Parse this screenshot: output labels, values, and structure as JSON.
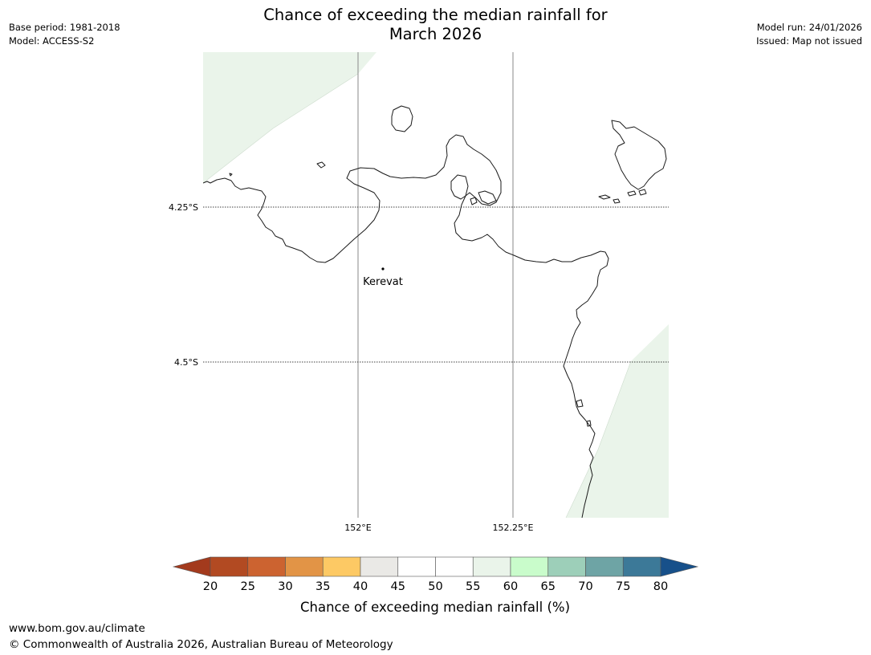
{
  "header": {
    "base_period": "Base period: 1981-2018",
    "model": "Model: ACCESS-S2",
    "model_run": "Model run: 24/01/2026",
    "issued": "Issued: Map not issued",
    "title_line1": "Chance of exceeding the median rainfall for",
    "title_line2": "March 2026"
  },
  "map": {
    "lat_labels": [
      "4.25°S",
      "4.5°S"
    ],
    "lon_labels": [
      "152°E",
      "152.25°E"
    ],
    "place_label": "Kerevat",
    "shading_class": "55-60",
    "shading_color": "#eaf4ea"
  },
  "colorbar": {
    "label": "Chance of exceeding median rainfall (%)",
    "ticks": [
      "20",
      "25",
      "30",
      "35",
      "40",
      "45",
      "50",
      "55",
      "60",
      "65",
      "70",
      "75",
      "80"
    ],
    "under_color": "#a33a1d",
    "over_color": "#17508a",
    "colors": [
      "#b24a22",
      "#cc6330",
      "#e29446",
      "#fdc964",
      "#eae9e6",
      "#ffffff",
      "#ffffff",
      "#eaf4ea",
      "#c9fccb",
      "#9dcfb9",
      "#6ea4a5",
      "#3c7998"
    ]
  },
  "footer": {
    "url": "www.bom.gov.au/climate",
    "copyright": "© Commonwealth of Australia 2026, Australian Bureau of Meteorology"
  }
}
